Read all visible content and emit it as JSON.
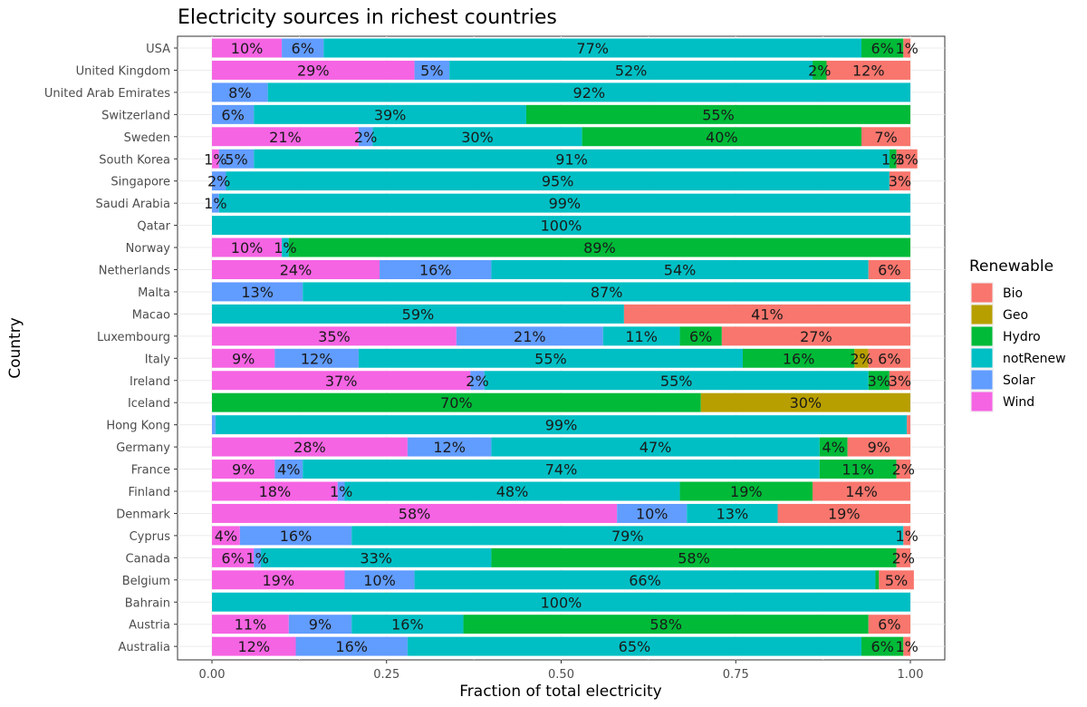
{
  "chart_data": {
    "type": "bar",
    "orientation": "horizontal",
    "stacked": true,
    "title": "Electricity sources in richest countries",
    "xlabel": "Fraction of total electricity",
    "ylabel": "Country",
    "xlim": [
      0,
      1
    ],
    "x_ticks": [
      "0.00",
      "0.25",
      "0.50",
      "0.75",
      "1.00"
    ],
    "grid": "on",
    "legend": {
      "title": "Renewable",
      "position": "right",
      "entries": [
        {
          "name": "Bio",
          "color": "#f8766d"
        },
        {
          "name": "Geo",
          "color": "#b79f00"
        },
        {
          "name": "Hydro",
          "color": "#00ba38"
        },
        {
          "name": "notRenew",
          "color": "#00bfc4"
        },
        {
          "name": "Solar",
          "color": "#619cff"
        },
        {
          "name": "Wind",
          "color": "#f564e3"
        }
      ]
    },
    "stack_order": [
      "Wind",
      "Solar",
      "notRenew",
      "Hydro",
      "Geo",
      "Bio"
    ],
    "categories": [
      "USA",
      "United Kingdom",
      "United Arab Emirates",
      "Switzerland",
      "Sweden",
      "South Korea",
      "Singapore",
      "Saudi Arabia",
      "Qatar",
      "Norway",
      "Netherlands",
      "Malta",
      "Macao",
      "Luxembourg",
      "Italy",
      "Ireland",
      "Iceland",
      "Hong Kong",
      "Germany",
      "France",
      "Finland",
      "Denmark",
      "Cyprus",
      "Canada",
      "Belgium",
      "Bahrain",
      "Austria",
      "Australia"
    ],
    "rows": [
      {
        "country": "USA",
        "segments": [
          {
            "source": "Wind",
            "value": 0.1,
            "label": "10%"
          },
          {
            "source": "Solar",
            "value": 0.06,
            "label": "6%"
          },
          {
            "source": "notRenew",
            "value": 0.77,
            "label": "77%"
          },
          {
            "source": "Hydro",
            "value": 0.06,
            "label": "6%"
          },
          {
            "source": "Bio",
            "value": 0.01,
            "label": "1%"
          }
        ]
      },
      {
        "country": "United Kingdom",
        "segments": [
          {
            "source": "Wind",
            "value": 0.29,
            "label": "29%"
          },
          {
            "source": "Solar",
            "value": 0.05,
            "label": "5%"
          },
          {
            "source": "notRenew",
            "value": 0.52,
            "label": "52%"
          },
          {
            "source": "Hydro",
            "value": 0.02,
            "label": "2%"
          },
          {
            "source": "Bio",
            "value": 0.12,
            "label": "12%"
          }
        ]
      },
      {
        "country": "United Arab Emirates",
        "segments": [
          {
            "source": "Solar",
            "value": 0.08,
            "label": "8%"
          },
          {
            "source": "notRenew",
            "value": 0.92,
            "label": "92%"
          }
        ]
      },
      {
        "country": "Switzerland",
        "segments": [
          {
            "source": "Solar",
            "value": 0.06,
            "label": "6%"
          },
          {
            "source": "notRenew",
            "value": 0.39,
            "label": "39%"
          },
          {
            "source": "Hydro",
            "value": 0.55,
            "label": "55%"
          }
        ]
      },
      {
        "country": "Sweden",
        "segments": [
          {
            "source": "Wind",
            "value": 0.21,
            "label": "21%"
          },
          {
            "source": "Solar",
            "value": 0.02,
            "label": "2%"
          },
          {
            "source": "notRenew",
            "value": 0.3,
            "label": "30%"
          },
          {
            "source": "Hydro",
            "value": 0.4,
            "label": "40%"
          },
          {
            "source": "Bio",
            "value": 0.07,
            "label": "7%"
          }
        ]
      },
      {
        "country": "South Korea",
        "segments": [
          {
            "source": "Wind",
            "value": 0.01,
            "label": "1%"
          },
          {
            "source": "Solar",
            "value": 0.05,
            "label": "5%"
          },
          {
            "source": "notRenew",
            "value": 0.91,
            "label": "91%"
          },
          {
            "source": "Hydro",
            "value": 0.01,
            "label": "1%"
          },
          {
            "source": "Bio",
            "value": 0.03,
            "label": "3%"
          }
        ]
      },
      {
        "country": "Singapore",
        "segments": [
          {
            "source": "Solar",
            "value": 0.02,
            "label": "2%"
          },
          {
            "source": "notRenew",
            "value": 0.95,
            "label": "95%"
          },
          {
            "source": "Bio",
            "value": 0.03,
            "label": "3%"
          }
        ]
      },
      {
        "country": "Saudi Arabia",
        "segments": [
          {
            "source": "Solar",
            "value": 0.01,
            "label": "1%"
          },
          {
            "source": "notRenew",
            "value": 0.99,
            "label": "99%"
          }
        ]
      },
      {
        "country": "Qatar",
        "segments": [
          {
            "source": "notRenew",
            "value": 1.0,
            "label": "100%"
          }
        ]
      },
      {
        "country": "Norway",
        "segments": [
          {
            "source": "Wind",
            "value": 0.1,
            "label": "10%"
          },
          {
            "source": "notRenew",
            "value": 0.01,
            "label": "1%"
          },
          {
            "source": "Hydro",
            "value": 0.89,
            "label": "89%"
          }
        ]
      },
      {
        "country": "Netherlands",
        "segments": [
          {
            "source": "Wind",
            "value": 0.24,
            "label": "24%"
          },
          {
            "source": "Solar",
            "value": 0.16,
            "label": "16%"
          },
          {
            "source": "notRenew",
            "value": 0.54,
            "label": "54%"
          },
          {
            "source": "Bio",
            "value": 0.06,
            "label": "6%"
          }
        ]
      },
      {
        "country": "Malta",
        "segments": [
          {
            "source": "Solar",
            "value": 0.13,
            "label": "13%"
          },
          {
            "source": "notRenew",
            "value": 0.87,
            "label": "87%"
          }
        ]
      },
      {
        "country": "Macao",
        "segments": [
          {
            "source": "notRenew",
            "value": 0.59,
            "label": "59%"
          },
          {
            "source": "Bio",
            "value": 0.41,
            "label": "41%"
          }
        ]
      },
      {
        "country": "Luxembourg",
        "segments": [
          {
            "source": "Wind",
            "value": 0.35,
            "label": "35%"
          },
          {
            "source": "Solar",
            "value": 0.21,
            "label": "21%"
          },
          {
            "source": "notRenew",
            "value": 0.11,
            "label": "11%"
          },
          {
            "source": "Hydro",
            "value": 0.06,
            "label": "6%"
          },
          {
            "source": "Bio",
            "value": 0.27,
            "label": "27%"
          }
        ]
      },
      {
        "country": "Italy",
        "segments": [
          {
            "source": "Wind",
            "value": 0.09,
            "label": "9%"
          },
          {
            "source": "Solar",
            "value": 0.12,
            "label": "12%"
          },
          {
            "source": "notRenew",
            "value": 0.55,
            "label": "55%"
          },
          {
            "source": "Hydro",
            "value": 0.16,
            "label": "16%"
          },
          {
            "source": "Geo",
            "value": 0.02,
            "label": "2%"
          },
          {
            "source": "Bio",
            "value": 0.06,
            "label": "6%"
          }
        ]
      },
      {
        "country": "Ireland",
        "segments": [
          {
            "source": "Wind",
            "value": 0.37,
            "label": "37%"
          },
          {
            "source": "Solar",
            "value": 0.02,
            "label": "2%"
          },
          {
            "source": "notRenew",
            "value": 0.55,
            "label": "55%"
          },
          {
            "source": "Hydro",
            "value": 0.03,
            "label": "3%"
          },
          {
            "source": "Bio",
            "value": 0.03,
            "label": "3%"
          }
        ]
      },
      {
        "country": "Iceland",
        "segments": [
          {
            "source": "Hydro",
            "value": 0.7,
            "label": "70%"
          },
          {
            "source": "Geo",
            "value": 0.3,
            "label": "30%"
          }
        ]
      },
      {
        "country": "Hong Kong",
        "segments": [
          {
            "source": "Solar",
            "value": 0.005,
            "label": ""
          },
          {
            "source": "notRenew",
            "value": 0.99,
            "label": "99%"
          },
          {
            "source": "Bio",
            "value": 0.005,
            "label": ""
          }
        ]
      },
      {
        "country": "Germany",
        "segments": [
          {
            "source": "Wind",
            "value": 0.28,
            "label": "28%"
          },
          {
            "source": "Solar",
            "value": 0.12,
            "label": "12%"
          },
          {
            "source": "notRenew",
            "value": 0.47,
            "label": "47%"
          },
          {
            "source": "Hydro",
            "value": 0.04,
            "label": "4%"
          },
          {
            "source": "Bio",
            "value": 0.09,
            "label": "9%"
          }
        ]
      },
      {
        "country": "France",
        "segments": [
          {
            "source": "Wind",
            "value": 0.09,
            "label": "9%"
          },
          {
            "source": "Solar",
            "value": 0.04,
            "label": "4%"
          },
          {
            "source": "notRenew",
            "value": 0.74,
            "label": "74%"
          },
          {
            "source": "Hydro",
            "value": 0.11,
            "label": "11%"
          },
          {
            "source": "Bio",
            "value": 0.02,
            "label": "2%"
          }
        ]
      },
      {
        "country": "Finland",
        "segments": [
          {
            "source": "Wind",
            "value": 0.18,
            "label": "18%"
          },
          {
            "source": "Solar",
            "value": 0.01,
            "label": "1%"
          },
          {
            "source": "notRenew",
            "value": 0.48,
            "label": "48%"
          },
          {
            "source": "Hydro",
            "value": 0.19,
            "label": "19%"
          },
          {
            "source": "Bio",
            "value": 0.14,
            "label": "14%"
          }
        ]
      },
      {
        "country": "Denmark",
        "segments": [
          {
            "source": "Wind",
            "value": 0.58,
            "label": "58%"
          },
          {
            "source": "Solar",
            "value": 0.1,
            "label": "10%"
          },
          {
            "source": "notRenew",
            "value": 0.13,
            "label": "13%"
          },
          {
            "source": "Bio",
            "value": 0.19,
            "label": "19%"
          }
        ]
      },
      {
        "country": "Cyprus",
        "segments": [
          {
            "source": "Wind",
            "value": 0.04,
            "label": "4%"
          },
          {
            "source": "Solar",
            "value": 0.16,
            "label": "16%"
          },
          {
            "source": "notRenew",
            "value": 0.79,
            "label": "79%"
          },
          {
            "source": "Bio",
            "value": 0.01,
            "label": "1%"
          }
        ]
      },
      {
        "country": "Canada",
        "segments": [
          {
            "source": "Wind",
            "value": 0.06,
            "label": "6%"
          },
          {
            "source": "Solar",
            "value": 0.01,
            "label": "1%"
          },
          {
            "source": "notRenew",
            "value": 0.33,
            "label": "33%"
          },
          {
            "source": "Hydro",
            "value": 0.58,
            "label": "58%"
          },
          {
            "source": "Bio",
            "value": 0.02,
            "label": "2%"
          }
        ]
      },
      {
        "country": "Belgium",
        "segments": [
          {
            "source": "Wind",
            "value": 0.19,
            "label": "19%"
          },
          {
            "source": "Solar",
            "value": 0.1,
            "label": "10%"
          },
          {
            "source": "notRenew",
            "value": 0.66,
            "label": "66%"
          },
          {
            "source": "Hydro",
            "value": 0.005,
            "label": ""
          },
          {
            "source": "Bio",
            "value": 0.05,
            "label": "5%"
          }
        ]
      },
      {
        "country": "Bahrain",
        "segments": [
          {
            "source": "notRenew",
            "value": 1.0,
            "label": "100%"
          }
        ]
      },
      {
        "country": "Austria",
        "segments": [
          {
            "source": "Wind",
            "value": 0.11,
            "label": "11%"
          },
          {
            "source": "Solar",
            "value": 0.09,
            "label": "9%"
          },
          {
            "source": "notRenew",
            "value": 0.16,
            "label": "16%"
          },
          {
            "source": "Hydro",
            "value": 0.58,
            "label": "58%"
          },
          {
            "source": "Bio",
            "value": 0.06,
            "label": "6%"
          }
        ]
      },
      {
        "country": "Australia",
        "segments": [
          {
            "source": "Wind",
            "value": 0.12,
            "label": "12%"
          },
          {
            "source": "Solar",
            "value": 0.16,
            "label": "16%"
          },
          {
            "source": "notRenew",
            "value": 0.65,
            "label": "65%"
          },
          {
            "source": "Hydro",
            "value": 0.06,
            "label": "6%"
          },
          {
            "source": "Bio",
            "value": 0.01,
            "label": "1%"
          }
        ]
      }
    ]
  }
}
